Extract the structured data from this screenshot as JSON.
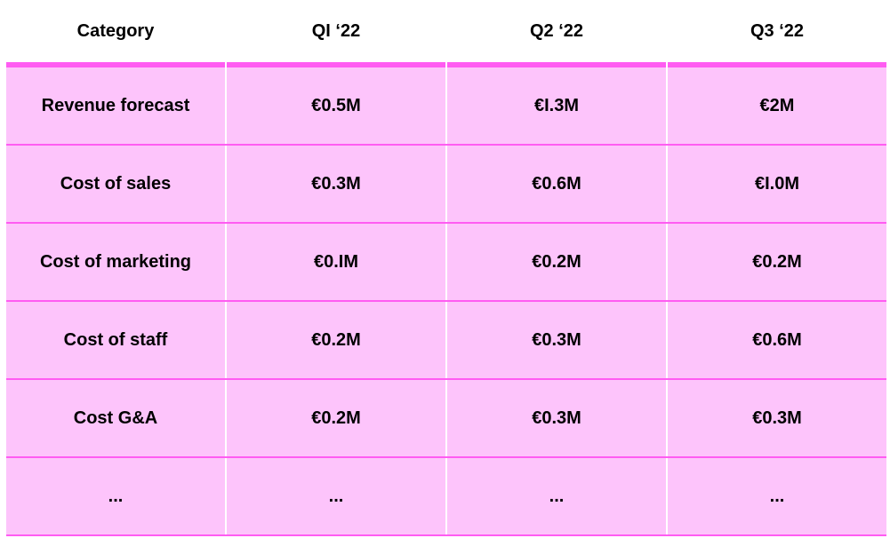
{
  "table": {
    "headers": [
      "Category",
      "QI ‘22",
      "Q2 ‘22",
      "Q3 ‘22"
    ],
    "rows": [
      [
        "Revenue forecast",
        "€0.5M",
        "€I.3M",
        "€2M"
      ],
      [
        "Cost of sales",
        "€0.3M",
        "€0.6M",
        "€I.0M"
      ],
      [
        "Cost of marketing",
        "€0.IM",
        "€0.2M",
        "€0.2M"
      ],
      [
        "Cost of staff",
        "€0.2M",
        "€0.3M",
        "€0.6M"
      ],
      [
        "Cost G&A",
        "€0.2M",
        "€0.3M",
        "€0.3M"
      ],
      [
        "...",
        "...",
        "...",
        "..."
      ]
    ]
  },
  "colors": {
    "cell_fill": "#fdc4fb",
    "rule": "#ff5cf2"
  }
}
